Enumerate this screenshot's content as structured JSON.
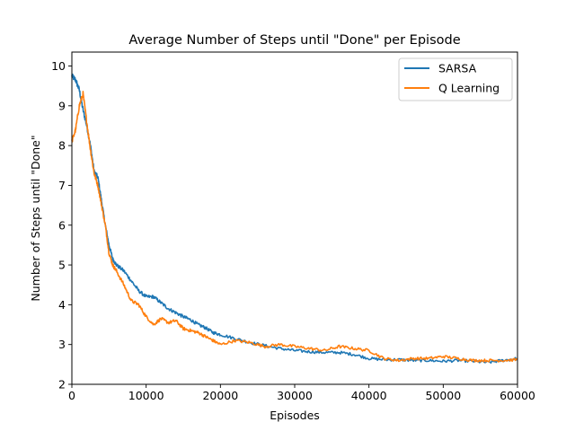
{
  "chart_data": {
    "type": "line",
    "title": "Average Number of Steps until \"Done\" per Episode",
    "xlabel": "Episodes",
    "ylabel": "Number of Steps until \"Done\"",
    "xlim": [
      0,
      60000
    ],
    "ylim": [
      2,
      10.35
    ],
    "xticks": [
      0,
      10000,
      20000,
      30000,
      40000,
      50000,
      60000
    ],
    "yticks": [
      2,
      3,
      4,
      5,
      6,
      7,
      8,
      9,
      10
    ],
    "grid": false,
    "legend_position": "top-right",
    "series": [
      {
        "name": "SARSA",
        "color": "#1f77b4",
        "x": [
          0,
          500,
          1000,
          1500,
          2000,
          2500,
          3000,
          3500,
          4000,
          4500,
          5000,
          5500,
          6000,
          7000,
          8000,
          9000,
          10000,
          11000,
          12000,
          13000,
          14000,
          15000,
          16000,
          17000,
          18000,
          19000,
          20000,
          22000,
          24000,
          26000,
          28000,
          30000,
          32000,
          34000,
          36000,
          38000,
          40000,
          42000,
          44000,
          46000,
          48000,
          50000,
          52000,
          54000,
          56000,
          58000,
          60000
        ],
        "y": [
          9.75,
          9.65,
          9.4,
          8.9,
          8.5,
          8.0,
          7.35,
          7.2,
          6.6,
          6.0,
          5.5,
          5.15,
          5.0,
          4.85,
          4.6,
          4.35,
          4.2,
          4.2,
          4.05,
          3.9,
          3.8,
          3.7,
          3.62,
          3.5,
          3.42,
          3.3,
          3.25,
          3.15,
          3.05,
          2.97,
          2.9,
          2.85,
          2.82,
          2.8,
          2.8,
          2.75,
          2.65,
          2.62,
          2.62,
          2.6,
          2.6,
          2.58,
          2.6,
          2.58,
          2.55,
          2.6,
          2.65
        ]
      },
      {
        "name": "Q Learning",
        "color": "#ff7f0e",
        "x": [
          0,
          500,
          1000,
          1500,
          2000,
          2500,
          3000,
          3500,
          4000,
          4500,
          5000,
          5500,
          6000,
          7000,
          8000,
          9000,
          10000,
          11000,
          12000,
          13000,
          14000,
          15000,
          16000,
          17000,
          18000,
          19000,
          20000,
          22000,
          24000,
          26000,
          28000,
          30000,
          32000,
          34000,
          36000,
          38000,
          40000,
          42000,
          44000,
          46000,
          48000,
          50000,
          52000,
          54000,
          56000,
          58000,
          60000
        ],
        "y": [
          8.1,
          8.4,
          9.0,
          9.3,
          8.6,
          7.9,
          7.3,
          7.0,
          6.5,
          6.0,
          5.3,
          5.0,
          4.85,
          4.5,
          4.1,
          4.0,
          3.7,
          3.5,
          3.65,
          3.55,
          3.6,
          3.4,
          3.35,
          3.3,
          3.2,
          3.1,
          3.0,
          3.1,
          3.05,
          2.95,
          3.0,
          2.95,
          2.9,
          2.85,
          2.95,
          2.9,
          2.85,
          2.65,
          2.6,
          2.65,
          2.65,
          2.7,
          2.65,
          2.6,
          2.6,
          2.6,
          2.62
        ]
      }
    ]
  }
}
